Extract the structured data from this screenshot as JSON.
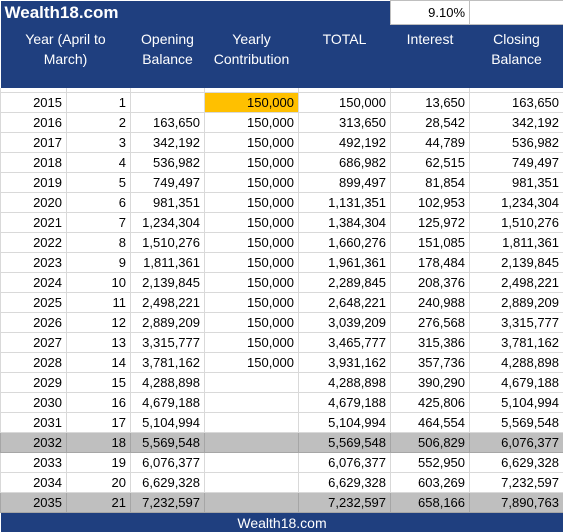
{
  "brand": "Wealth18.com",
  "interest_rate": "9.10%",
  "headers": {
    "year": "Year (April to March)",
    "opening": "Opening Balance",
    "contribution": "Yearly Contribution",
    "total": "TOTAL",
    "interest": "Interest",
    "closing": "Closing Balance"
  },
  "rows": [
    {
      "year": "2015",
      "n": "1",
      "opening": "",
      "contribution": "150,000",
      "total": "150,000",
      "interest": "13,650",
      "closing": "163,650",
      "highlight": true
    },
    {
      "year": "2016",
      "n": "2",
      "opening": "163,650",
      "contribution": "150,000",
      "total": "313,650",
      "interest": "28,542",
      "closing": "342,192"
    },
    {
      "year": "2017",
      "n": "3",
      "opening": "342,192",
      "contribution": "150,000",
      "total": "492,192",
      "interest": "44,789",
      "closing": "536,982"
    },
    {
      "year": "2018",
      "n": "4",
      "opening": "536,982",
      "contribution": "150,000",
      "total": "686,982",
      "interest": "62,515",
      "closing": "749,497"
    },
    {
      "year": "2019",
      "n": "5",
      "opening": "749,497",
      "contribution": "150,000",
      "total": "899,497",
      "interest": "81,854",
      "closing": "981,351"
    },
    {
      "year": "2020",
      "n": "6",
      "opening": "981,351",
      "contribution": "150,000",
      "total": "1,131,351",
      "interest": "102,953",
      "closing": "1,234,304"
    },
    {
      "year": "2021",
      "n": "7",
      "opening": "1,234,304",
      "contribution": "150,000",
      "total": "1,384,304",
      "interest": "125,972",
      "closing": "1,510,276"
    },
    {
      "year": "2022",
      "n": "8",
      "opening": "1,510,276",
      "contribution": "150,000",
      "total": "1,660,276",
      "interest": "151,085",
      "closing": "1,811,361"
    },
    {
      "year": "2023",
      "n": "9",
      "opening": "1,811,361",
      "contribution": "150,000",
      "total": "1,961,361",
      "interest": "178,484",
      "closing": "2,139,845"
    },
    {
      "year": "2024",
      "n": "10",
      "opening": "2,139,845",
      "contribution": "150,000",
      "total": "2,289,845",
      "interest": "208,376",
      "closing": "2,498,221"
    },
    {
      "year": "2025",
      "n": "11",
      "opening": "2,498,221",
      "contribution": "150,000",
      "total": "2,648,221",
      "interest": "240,988",
      "closing": "2,889,209"
    },
    {
      "year": "2026",
      "n": "12",
      "opening": "2,889,209",
      "contribution": "150,000",
      "total": "3,039,209",
      "interest": "276,568",
      "closing": "3,315,777"
    },
    {
      "year": "2027",
      "n": "13",
      "opening": "3,315,777",
      "contribution": "150,000",
      "total": "3,465,777",
      "interest": "315,386",
      "closing": "3,781,162"
    },
    {
      "year": "2028",
      "n": "14",
      "opening": "3,781,162",
      "contribution": "150,000",
      "total": "3,931,162",
      "interest": "357,736",
      "closing": "4,288,898"
    },
    {
      "year": "2029",
      "n": "15",
      "opening": "4,288,898",
      "contribution": "",
      "total": "4,288,898",
      "interest": "390,290",
      "closing": "4,679,188"
    },
    {
      "year": "2030",
      "n": "16",
      "opening": "4,679,188",
      "contribution": "",
      "total": "4,679,188",
      "interest": "425,806",
      "closing": "5,104,994"
    },
    {
      "year": "2031",
      "n": "17",
      "opening": "5,104,994",
      "contribution": "",
      "total": "5,104,994",
      "interest": "464,554",
      "closing": "5,569,548"
    },
    {
      "year": "2032",
      "n": "18",
      "opening": "5,569,548",
      "contribution": "",
      "total": "5,569,548",
      "interest": "506,829",
      "closing": "6,076,377",
      "shaded": true
    },
    {
      "year": "2033",
      "n": "19",
      "opening": "6,076,377",
      "contribution": "",
      "total": "6,076,377",
      "interest": "552,950",
      "closing": "6,629,328"
    },
    {
      "year": "2034",
      "n": "20",
      "opening": "6,629,328",
      "contribution": "",
      "total": "6,629,328",
      "interest": "603,269",
      "closing": "7,232,597"
    },
    {
      "year": "2035",
      "n": "21",
      "opening": "7,232,597",
      "contribution": "",
      "total": "7,232,597",
      "interest": "658,166",
      "closing": "7,890,763",
      "shaded": true
    }
  ],
  "footer": "Wealth18.com",
  "colors": {
    "header_bg": "#1f3f7f",
    "highlight": "#ffc000",
    "shaded_row": "#bfbfbf"
  }
}
